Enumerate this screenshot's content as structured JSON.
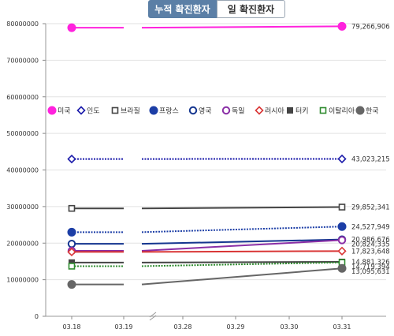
{
  "tabs": {
    "cumulative_label": "누적 확진환자",
    "daily_label": "일 확진환자"
  },
  "chart_data": {
    "type": "line",
    "x": [
      "03.18",
      "03.19",
      "03.28",
      "03.29",
      "03.30",
      "03.31"
    ],
    "ylim": [
      0,
      80000000
    ],
    "yticks": [
      "0",
      "10000000",
      "20000000",
      "30000000",
      "40000000",
      "50000000",
      "60000000",
      "70000000",
      "80000000"
    ],
    "grid": true,
    "legend_position": "middle",
    "series": [
      {
        "name": "미국",
        "color": "#ff22dd",
        "marker": "circle-filled",
        "line": "solid",
        "start": 78900000,
        "end": 79266906,
        "end_label": "79,266,906"
      },
      {
        "name": "인도",
        "color": "#1a1aaa",
        "marker": "diamond-open",
        "line": "dotted",
        "start": 43000000,
        "end": 43023215,
        "end_label": "43,023,215"
      },
      {
        "name": "브라질",
        "color": "#444444",
        "marker": "square-open",
        "line": "solid",
        "start": 29500000,
        "end": 29852341,
        "end_label": "29,852,341"
      },
      {
        "name": "프랑스",
        "color": "#1c3ea6",
        "marker": "circle-filled",
        "line": "dotted",
        "start": 23000000,
        "end": 24527949,
        "end_label": "24,527,949"
      },
      {
        "name": "영국",
        "color": "#14358f",
        "marker": "circle-open",
        "line": "solid",
        "start": 19800000,
        "end": 20986676,
        "end_label": "20,986,676"
      },
      {
        "name": "독일",
        "color": "#8a2ea6",
        "marker": "circle-open",
        "line": "solid",
        "start": 17900000,
        "end": 20824335,
        "end_label": "20,824,335"
      },
      {
        "name": "러시아",
        "color": "#d93535",
        "marker": "diamond-open",
        "line": "solid",
        "start": 17600000,
        "end": 17823648,
        "end_label": "17,823,648"
      },
      {
        "name": "터키",
        "color": "#444444",
        "marker": "square-filled",
        "line": "solid",
        "start": 14700000,
        "end": 14881326,
        "end_label": "14,881,326"
      },
      {
        "name": "이탈리아",
        "color": "#2e8b2e",
        "marker": "square-open",
        "line": "dotted",
        "start": 13700000,
        "end": 14719394,
        "end_label": "14,719,394"
      },
      {
        "name": "한국",
        "color": "#666666",
        "marker": "circle-filled",
        "line": "solid",
        "start": 8700000,
        "end": 13095631,
        "end_label": "13,095,631"
      }
    ]
  }
}
